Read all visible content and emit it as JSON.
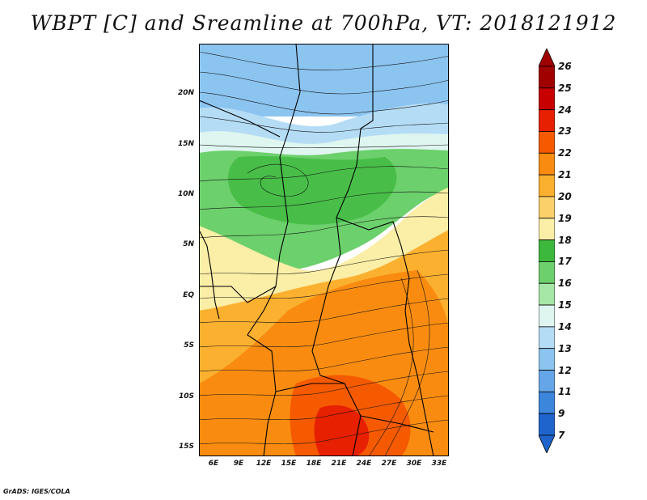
{
  "title": "WBPT [C] and Sreamline at 700hPa, VT: 2018121912",
  "footer": "GrADS: IGES/COLA",
  "map": {
    "lat_labels": [
      "20N",
      "15N",
      "10N",
      "5N",
      "EQ",
      "5S",
      "10S",
      "15S"
    ],
    "lon_labels": [
      "6E",
      "9E",
      "12E",
      "15E",
      "18E",
      "21E",
      "24E",
      "27E",
      "30E",
      "33E"
    ],
    "lat_range": [
      -16,
      23
    ],
    "lon_range": [
      4,
      33
    ],
    "field": "wet-bulb potential temperature shaded, streamlines overlaid"
  },
  "colorbar": {
    "labels": [
      "26",
      "25",
      "24",
      "23",
      "22",
      "21",
      "20",
      "19",
      "18",
      "17",
      "16",
      "15",
      "14",
      "13",
      "12",
      "11",
      "9",
      "7"
    ],
    "colors": [
      "#a00000",
      "#c80000",
      "#e62000",
      "#f55a00",
      "#f98c10",
      "#fbb030",
      "#fbd06a",
      "#fbeea6",
      "#3cb83c",
      "#6cd06c",
      "#a6e6a6",
      "#dff5f0",
      "#b4dcf5",
      "#8cc4f0",
      "#64a6e8",
      "#3c86dc",
      "#1e64cc"
    ],
    "top_arrow_color": "#a00000",
    "bottom_arrow_color": "#1e64cc"
  }
}
